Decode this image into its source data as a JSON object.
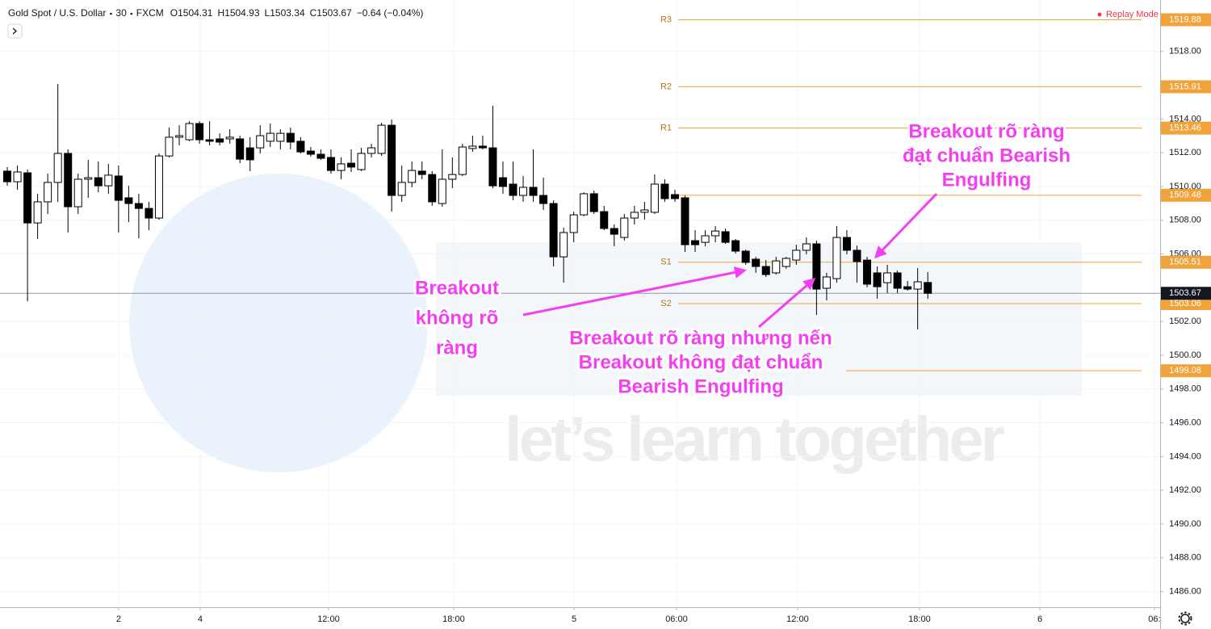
{
  "header": {
    "symbol": "Gold Spot / U.S. Dollar",
    "interval": "30",
    "source": "FXCM",
    "ohlc_labels": [
      "O",
      "H",
      "L",
      "C"
    ],
    "change": "−0.64 (−0.04%)",
    "replay": "Replay Mode"
  },
  "chart_data": {
    "type": "candlestick",
    "open": [
      1510.91,
      1510.28,
      1510.81,
      1507.84,
      1509.09,
      1510.24,
      1511.96,
      1508.8,
      1510.43,
      1510.52,
      1510.04,
      1510.62,
      1509.33,
      1508.99,
      1508.7,
      1508.13,
      1511.81,
      1512.92,
      1512.77,
      1513.73,
      1512.77,
      1512.82,
      1512.82,
      1512.82,
      1512.29,
      1512.29,
      1512.68,
      1512.68,
      1513.15,
      1512.68,
      1512.1,
      1511.91,
      1511.72,
      1510.95,
      1511.38,
      1511.0,
      1511.96,
      1511.96,
      1513.63,
      1509.47,
      1510.24,
      1510.91,
      1510.71,
      1508.99,
      1510.43,
      1510.71,
      1512.25,
      1512.39,
      1512.29,
      1510.52,
      1510.14,
      1509.47,
      1509.95,
      1509.47,
      1508.99,
      1505.83,
      1507.27,
      1508.32,
      1509.57,
      1508.51,
      1507.51,
      1506.98,
      1508.13,
      1508.47,
      1508.47,
      1510.14,
      1509.52,
      1509.33,
      1506.79,
      1506.69,
      1507.08,
      1507.32,
      1506.79,
      1506.17,
      1505.69,
      1505.26,
      1504.88,
      1505.26,
      1505.64,
      1506.22,
      1506.6,
      1503.97,
      1504.54,
      1506.98,
      1506.22,
      1505.64,
      1504.88,
      1504.3,
      1504.88,
      1504.06,
      1503.92,
      1504.31
    ],
    "high": [
      1511.15,
      1511.24,
      1511.0,
      1509.57,
      1510.76,
      1516.07,
      1512.2,
      1510.76,
      1511.58,
      1511.48,
      1511.34,
      1511.24,
      1510.04,
      1509.57,
      1509.09,
      1511.96,
      1513.49,
      1513.63,
      1513.87,
      1513.87,
      1513.87,
      1513.15,
      1513.39,
      1513.01,
      1512.92,
      1513.63,
      1513.73,
      1513.39,
      1513.49,
      1512.92,
      1512.34,
      1512.2,
      1512.2,
      1511.72,
      1512.2,
      1512.29,
      1512.53,
      1513.78,
      1513.97,
      1511.24,
      1511.48,
      1511.48,
      1510.91,
      1512.2,
      1511.72,
      1512.53,
      1513.01,
      1513.01,
      1514.78,
      1511.48,
      1511.48,
      1510.62,
      1512.2,
      1510.52,
      1509.18,
      1507.56,
      1508.51,
      1509.66,
      1509.76,
      1508.85,
      1507.75,
      1508.37,
      1508.85,
      1509.09,
      1510.71,
      1510.43,
      1509.81,
      1509.47,
      1507.41,
      1507.41,
      1507.65,
      1507.51,
      1506.89,
      1506.26,
      1505.83,
      1505.64,
      1505.83,
      1505.83,
      1506.55,
      1506.98,
      1506.79,
      1504.88,
      1507.65,
      1507.41,
      1506.5,
      1505.83,
      1505.26,
      1505.36,
      1505.02,
      1504.4,
      1505.16,
      1504.93
    ],
    "low": [
      1510.04,
      1509.81,
      1503.2,
      1506.89,
      1508.37,
      1509.09,
      1507.27,
      1508.37,
      1509.33,
      1509.66,
      1509.57,
      1507.27,
      1507.89,
      1506.93,
      1507.41,
      1508.03,
      1511.72,
      1512.44,
      1512.68,
      1512.53,
      1512.44,
      1512.44,
      1512.53,
      1511.38,
      1510.91,
      1511.96,
      1512.34,
      1512.2,
      1512.2,
      1511.96,
      1511.77,
      1511.58,
      1510.76,
      1510.43,
      1510.86,
      1510.91,
      1511.72,
      1511.81,
      1508.51,
      1509.09,
      1509.95,
      1510.43,
      1508.85,
      1508.8,
      1509.9,
      1510.62,
      1512.05,
      1512.2,
      1509.9,
      1509.57,
      1509.18,
      1509.09,
      1509.09,
      1508.61,
      1505.26,
      1504.3,
      1506.69,
      1508.23,
      1508.37,
      1507.41,
      1506.46,
      1506.79,
      1507.75,
      1508.03,
      1508.37,
      1509.09,
      1509.09,
      1506.12,
      1506.12,
      1506.46,
      1506.69,
      1506.6,
      1506.03,
      1505.36,
      1504.88,
      1504.64,
      1504.78,
      1505.12,
      1505.36,
      1505.98,
      1502.39,
      1503.25,
      1504.3,
      1505.98,
      1504.3,
      1504.02,
      1503.35,
      1503.68,
      1503.68,
      1503.82,
      1501.53,
      1503.34
    ],
    "close": [
      1510.28,
      1510.86,
      1507.84,
      1509.09,
      1510.24,
      1511.96,
      1508.8,
      1510.43,
      1510.52,
      1510.04,
      1510.67,
      1509.18,
      1508.99,
      1508.7,
      1508.13,
      1511.81,
      1512.92,
      1513.01,
      1513.73,
      1512.77,
      1512.68,
      1512.63,
      1512.92,
      1511.62,
      1511.58,
      1513.01,
      1513.15,
      1513.15,
      1512.63,
      1512.05,
      1511.91,
      1511.67,
      1510.95,
      1511.34,
      1511.15,
      1511.96,
      1512.29,
      1513.63,
      1509.47,
      1510.24,
      1510.95,
      1510.71,
      1509.09,
      1510.43,
      1510.71,
      1512.34,
      1512.39,
      1512.29,
      1510.04,
      1510.0,
      1509.47,
      1509.95,
      1509.47,
      1508.99,
      1505.83,
      1507.27,
      1508.32,
      1509.57,
      1508.51,
      1507.51,
      1507.17,
      1508.13,
      1508.47,
      1508.61,
      1510.14,
      1509.28,
      1509.28,
      1506.55,
      1506.55,
      1507.08,
      1507.36,
      1506.69,
      1506.17,
      1505.5,
      1505.26,
      1504.78,
      1505.59,
      1505.74,
      1506.22,
      1506.6,
      1503.92,
      1504.64,
      1506.98,
      1506.22,
      1505.55,
      1504.21,
      1504.06,
      1504.88,
      1503.97,
      1503.92,
      1504.35,
      1503.67
    ],
    "up_color": "#ffffff",
    "down_color": "#000000",
    "wick_color": "#000000",
    "xlim": [
      -0.72,
      113.97
    ],
    "xticks": [
      {
        "value": 11.01,
        "label": "2"
      },
      {
        "value": 19.07,
        "label": "4"
      },
      {
        "value": 31.76,
        "label": "12:00"
      },
      {
        "value": 44.13,
        "label": "18:00"
      },
      {
        "value": 56.03,
        "label": "5"
      },
      {
        "value": 66.16,
        "label": "06:00"
      },
      {
        "value": 78.13,
        "label": "12:00"
      },
      {
        "value": 90.18,
        "label": "18:00"
      },
      {
        "value": 102.08,
        "label": "6"
      },
      {
        "value": 113.4,
        "label": "06:"
      }
    ],
    "ylim": [
      1485.07,
      1521.05
    ],
    "yticks": [
      {
        "value": 1486,
        "label": "1486.00"
      },
      {
        "value": 1488,
        "label": "1488.00"
      },
      {
        "value": 1490,
        "label": "1490.00"
      },
      {
        "value": 1492,
        "label": "1492.00"
      },
      {
        "value": 1494,
        "label": "1494.00"
      },
      {
        "value": 1496,
        "label": "1496.00"
      },
      {
        "value": 1498,
        "label": "1498.00"
      },
      {
        "value": 1500,
        "label": "1500.00"
      },
      {
        "value": 1502,
        "label": "1502.00"
      },
      {
        "value": 1506,
        "label": "1506.00"
      },
      {
        "value": 1508,
        "label": "1508.00"
      },
      {
        "value": 1510,
        "label": "1510.00"
      },
      {
        "value": 1512,
        "label": "1512.00"
      },
      {
        "value": 1514,
        "label": "1514.00"
      },
      {
        "value": 1518,
        "label": "1518.00"
      }
    ],
    "grid": true,
    "levels": [
      {
        "name": "R3",
        "value": 1519.88
      },
      {
        "name": "R2",
        "value": 1515.91
      },
      {
        "name": "R1",
        "value": 1513.46
      },
      {
        "value": 1509.48
      },
      {
        "name": "S1",
        "value": 1505.51
      },
      {
        "name": "S2",
        "value": 1503.06
      },
      {
        "value": 1499.08
      }
    ],
    "level_color": "#f0a23b",
    "last_price_color": "#131722",
    "annotations": [
      {
        "lines": [
          "Breakout",
          "không rõ",
          "ràng"
        ]
      },
      {
        "lines": [
          "Breakout rõ ràng nhưng nến",
          "Breakout không đạt chuẩn",
          "Bearish Engulfing"
        ]
      },
      {
        "lines": [
          "Breakout rõ ràng",
          "đạt chuẩn Bearish",
          "Engulfing"
        ]
      }
    ],
    "annotation_color": "#f43ff0",
    "watermark": "let’s learn together"
  }
}
